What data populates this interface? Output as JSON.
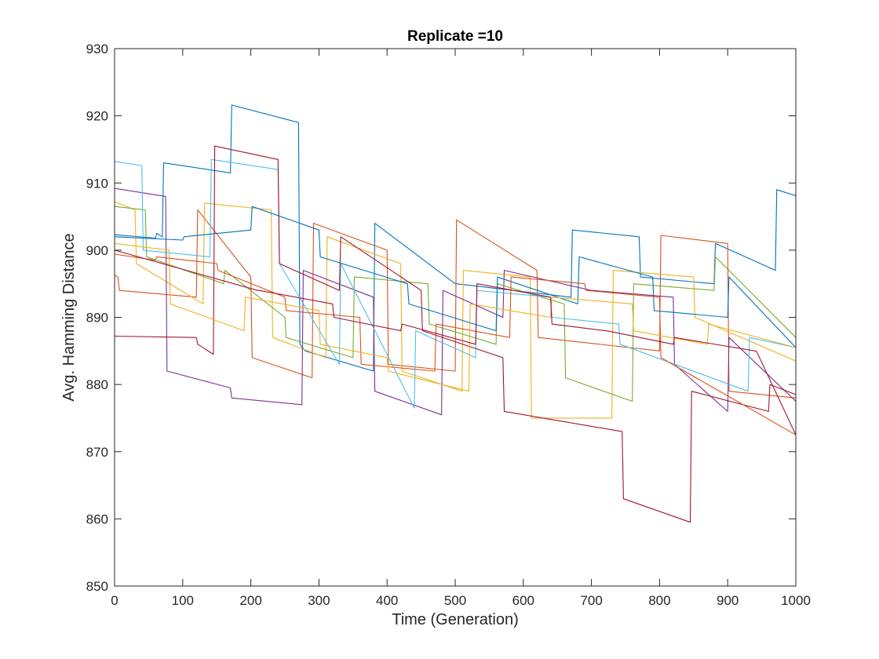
{
  "chart_data": {
    "type": "line",
    "title": "Replicate =10",
    "xlabel": "Time (Generation)",
    "ylabel": "Avg. Hamming Distance",
    "xlim": [
      0,
      1000
    ],
    "ylim": [
      850,
      930
    ],
    "xticks": [
      0,
      100,
      200,
      300,
      400,
      500,
      600,
      700,
      800,
      900,
      1000
    ],
    "yticks": [
      850,
      860,
      870,
      880,
      890,
      900,
      910,
      920,
      930
    ],
    "grid": false,
    "legend": "none",
    "series": [
      {
        "color": "#0072BD",
        "x": [
          0,
          60,
          62,
          70,
          72,
          170,
          172,
          270,
          272,
          280,
          380,
          382,
          500,
          502,
          670,
          672,
          770,
          772,
          880,
          882,
          970,
          972,
          1000
        ],
        "y": [
          902.3,
          901.8,
          902.5,
          902,
          913,
          911.5,
          921.6,
          919,
          886,
          885,
          882,
          904,
          895,
          895,
          893,
          903,
          902,
          896,
          895,
          901,
          897,
          909,
          908.1
        ]
      },
      {
        "color": "#D95319",
        "x": [
          0,
          5,
          7,
          120,
          122,
          200,
          202,
          290,
          292,
          400,
          402,
          500,
          502,
          620,
          622,
          800,
          802,
          900,
          902,
          1000
        ],
        "y": [
          896.3,
          896,
          894,
          893,
          906,
          896,
          884,
          881,
          904,
          900,
          883,
          882,
          904.5,
          897,
          887,
          885,
          902.2,
          901,
          879,
          878
        ]
      },
      {
        "color": "#EDB120",
        "x": [
          0,
          30,
          32,
          130,
          132,
          230,
          232,
          310,
          312,
          420,
          422,
          510,
          512,
          610,
          612,
          730,
          732,
          850,
          852,
          1000
        ],
        "y": [
          907.2,
          906,
          898,
          892,
          907,
          906,
          887,
          884,
          902,
          898,
          882,
          879,
          897,
          896,
          875,
          875,
          897,
          896,
          890,
          883.5
        ]
      },
      {
        "color": "#7E2F8E",
        "x": [
          0,
          75,
          77,
          170,
          172,
          275,
          277,
          380,
          382,
          480,
          482,
          570,
          572,
          700,
          702,
          820,
          822,
          900,
          902,
          1000
        ],
        "y": [
          909.2,
          908,
          882,
          879.5,
          878,
          877,
          897,
          893,
          879,
          875.5,
          894,
          890,
          897,
          894,
          894,
          893,
          883,
          876,
          887,
          877.5
        ]
      },
      {
        "color": "#77AC30",
        "x": [
          0,
          45,
          47,
          160,
          162,
          250,
          252,
          350,
          352,
          460,
          462,
          560,
          562,
          660,
          662,
          760,
          762,
          880,
          882,
          1000
        ],
        "y": [
          906.5,
          906,
          899,
          895,
          897,
          890,
          887,
          884,
          896,
          895,
          889,
          886,
          895,
          892,
          881,
          877.5,
          895,
          894,
          899,
          887
        ]
      },
      {
        "color": "#4DBEEE",
        "x": [
          0,
          40,
          42,
          140,
          142,
          240,
          242,
          330,
          332,
          440,
          442,
          530,
          532,
          640,
          642,
          740,
          742,
          930,
          932,
          1000
        ],
        "y": [
          913.2,
          912.6,
          900,
          899,
          913.5,
          912,
          898,
          883,
          898,
          876.5,
          888,
          884,
          894,
          893,
          890,
          889,
          886,
          879,
          887,
          885.5
        ]
      },
      {
        "color": "#A2142F",
        "x": [
          0,
          120,
          122,
          145,
          147,
          240,
          242,
          330,
          332,
          450,
          452,
          570,
          572,
          745,
          747,
          845,
          847,
          960,
          962,
          1000
        ],
        "y": [
          887.2,
          887,
          886,
          884.5,
          915.5,
          913.5,
          898,
          894,
          902,
          894,
          888,
          884,
          876,
          873,
          863,
          859.5,
          879,
          876,
          880,
          878.5
        ]
      },
      {
        "color": "#0072BD",
        "x": [
          0,
          100,
          102,
          200,
          202,
          300,
          302,
          430,
          432,
          560,
          562,
          680,
          682,
          790,
          792,
          900,
          902,
          1000
        ],
        "y": [
          902,
          901.5,
          902,
          903,
          906.5,
          903,
          899,
          895,
          892,
          888,
          896,
          892,
          899,
          896,
          891,
          890,
          896,
          885.5
        ]
      },
      {
        "color": "#D95319",
        "x": [
          0,
          60,
          62,
          150,
          152,
          250,
          252,
          360,
          362,
          470,
          472,
          580,
          582,
          690,
          692,
          800,
          802,
          1000
        ],
        "y": [
          899.4,
          898.5,
          899,
          898,
          897,
          893,
          891,
          890,
          883,
          882,
          889,
          887,
          896,
          895,
          894,
          893,
          884,
          872.5
        ]
      },
      {
        "color": "#EDB120",
        "x": [
          0,
          80,
          82,
          190,
          192,
          300,
          302,
          400,
          402,
          520,
          522,
          640,
          642,
          760,
          762,
          870,
          872,
          1000
        ],
        "y": [
          901,
          900,
          892,
          888,
          893,
          891,
          886,
          884,
          882,
          879,
          892,
          890,
          893,
          892,
          888,
          886,
          889,
          885.5
        ]
      },
      {
        "color": "#A2142F",
        "x": [
          0,
          210,
          212,
          320,
          322,
          420,
          422,
          530,
          532,
          640,
          642,
          720,
          722,
          820,
          822,
          940,
          942,
          1000
        ],
        "y": [
          900,
          894,
          894,
          892,
          890,
          888,
          889,
          886,
          895,
          893,
          889,
          888,
          888,
          886,
          887,
          885,
          885,
          872.5
        ]
      }
    ]
  }
}
